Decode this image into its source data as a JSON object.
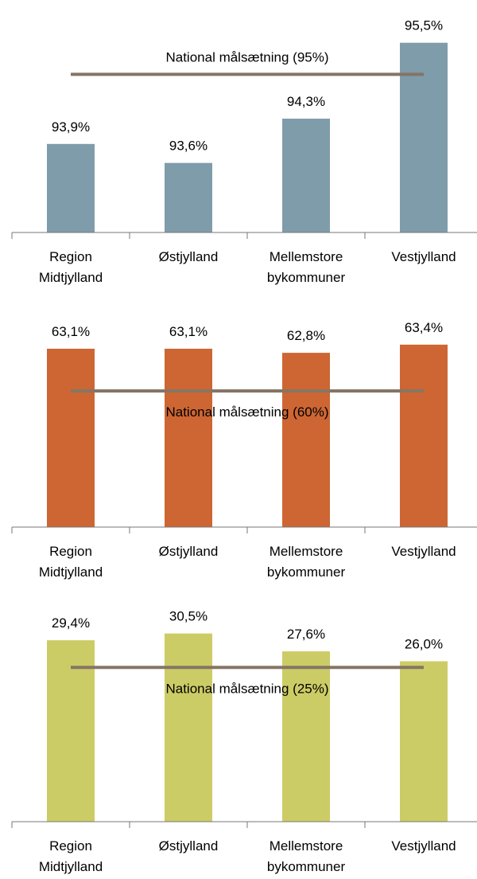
{
  "chart_data": [
    {
      "type": "bar",
      "categories": [
        "Region Midtjylland",
        "Østjylland",
        "Mellemstore bykommuner",
        "Vestjylland"
      ],
      "values": [
        93.9,
        93.6,
        94.3,
        95.5
      ],
      "value_labels": [
        "93,9%",
        "93,6%",
        "94,3%",
        "95,5%"
      ],
      "color": "#7f9cab",
      "ylim": [
        92.5,
        96
      ],
      "target": 95,
      "target_label": "National målsætning (95%)"
    },
    {
      "type": "bar",
      "categories": [
        "Region Midtjylland",
        "Østjylland",
        "Mellemstore bykommuner",
        "Vestjylland"
      ],
      "values": [
        63.1,
        63.1,
        62.8,
        63.4
      ],
      "value_labels": [
        "63,1%",
        "63,1%",
        "62,8%",
        "63,4%"
      ],
      "color": "#cd6633",
      "ylim": [
        50,
        70
      ],
      "target": 60,
      "target_label": "National målsætning (60%)"
    },
    {
      "type": "bar",
      "categories": [
        "Region Midtjylland",
        "Østjylland",
        "Mellemstore bykommuner",
        "Vestjylland"
      ],
      "values": [
        29.4,
        30.5,
        27.6,
        26.0
      ],
      "value_labels": [
        "29,4%",
        "30,5%",
        "27,6%",
        "26,0%"
      ],
      "color": "#cccc66",
      "ylim": [
        0,
        40
      ],
      "target": 25,
      "target_label": "National målsætning (25%)"
    }
  ]
}
